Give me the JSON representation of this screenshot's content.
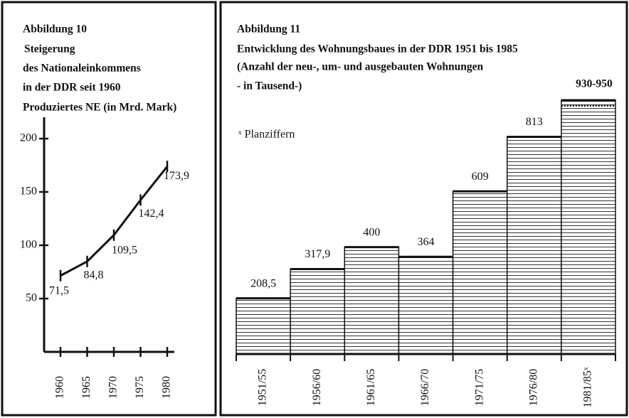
{
  "chart_data": [
    {
      "type": "line",
      "title": "Abbildung 10",
      "subtitle": [
        "Steigerung",
        "des Nationaleinkommens",
        "in der DDR seit 1960",
        "Produziertes NE (in Mrd. Mark)"
      ],
      "categories": [
        "1960",
        "1965",
        "1970",
        "1975",
        "1980"
      ],
      "values": [
        71.5,
        84.8,
        109.5,
        142.4,
        173.9
      ],
      "value_labels": [
        "71,5",
        "84,8",
        "109,5",
        "142,4",
        "173,9"
      ],
      "ylim": [
        0,
        220
      ],
      "yticks": [
        50,
        100,
        150,
        200
      ],
      "color": "#111111"
    },
    {
      "type": "bar",
      "title": "Abbildung 11",
      "subtitle": [
        "Entwicklung des Wohnungsbaues in der DDR 1951 bis 1985",
        "(Anzahl der neu-, um- und ausgebauten Wohnungen",
        " - in Tausend-)"
      ],
      "annotation": "ˣ Planziffern",
      "categories": [
        "1951/55",
        "1956/60",
        "1961/65",
        "1966/70",
        "1971/75",
        "1976/80",
        "1981/85ˣ"
      ],
      "values": [
        208.5,
        317.9,
        400,
        364,
        609,
        813,
        950
      ],
      "value_labels": [
        "208,5",
        "317,9",
        "400",
        "364",
        "609",
        "813",
        "930-950"
      ],
      "range_low": 930,
      "color": "#111111"
    }
  ]
}
